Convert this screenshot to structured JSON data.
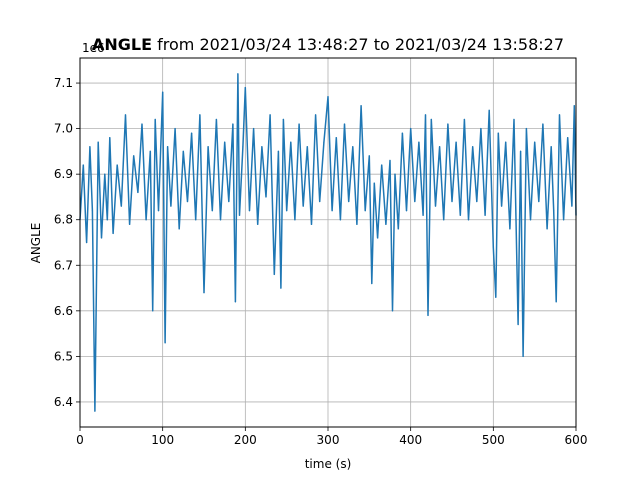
{
  "chart_data": {
    "type": "line",
    "title_bold": "ANGLE",
    "title_rest": " from 2021/03/24 13:48:27 to 2021/03/24 13:58:27",
    "offset_label": "1e6",
    "xlabel": "time (s)",
    "ylabel": "ANGLE",
    "xlim": [
      0,
      600
    ],
    "ylim": [
      6.345,
      7.155
    ],
    "x_ticks": [
      0,
      100,
      200,
      300,
      400,
      500,
      600
    ],
    "y_ticks": [
      6.4,
      6.5,
      6.6,
      6.7,
      6.8,
      6.9,
      7.0,
      7.1
    ],
    "y_tick_labels": [
      "6.4",
      "6.5",
      "6.6",
      "6.7",
      "6.8",
      "6.9",
      "7.0",
      "7.1"
    ],
    "grid": true,
    "line_color": "#1f77b4",
    "series": [
      {
        "x": [
          0,
          4,
          8,
          12,
          15,
          18,
          22,
          26,
          30,
          33,
          36,
          40,
          45,
          50,
          55,
          60,
          65,
          70,
          75,
          80,
          85,
          88,
          91,
          95,
          100,
          103,
          106,
          110,
          115,
          120,
          125,
          130,
          135,
          140,
          145,
          150,
          155,
          160,
          165,
          170,
          175,
          180,
          185,
          188,
          191,
          193,
          197,
          200,
          205,
          210,
          215,
          220,
          225,
          230,
          235,
          240,
          243,
          246,
          250,
          255,
          260,
          265,
          270,
          275,
          280,
          285,
          290,
          295,
          300,
          305,
          310,
          315,
          320,
          325,
          330,
          335,
          340,
          345,
          350,
          353,
          356,
          360,
          365,
          370,
          375,
          378,
          381,
          385,
          390,
          395,
          400,
          405,
          410,
          415,
          418,
          421,
          425,
          430,
          435,
          440,
          445,
          450,
          455,
          460,
          465,
          470,
          475,
          480,
          485,
          490,
          495,
          500,
          503,
          506,
          510,
          515,
          520,
          525,
          530,
          533,
          536,
          540,
          545,
          550,
          555,
          560,
          565,
          570,
          573,
          576,
          580,
          585,
          590,
          595,
          598,
          600
        ],
        "y": [
          6.8,
          6.92,
          6.75,
          6.96,
          6.82,
          6.38,
          6.97,
          6.76,
          6.9,
          6.8,
          6.98,
          6.77,
          6.92,
          6.83,
          7.03,
          6.79,
          6.94,
          6.86,
          7.01,
          6.8,
          6.95,
          6.6,
          7.02,
          6.82,
          7.08,
          6.53,
          6.96,
          6.83,
          7.0,
          6.78,
          6.95,
          6.84,
          6.99,
          6.8,
          7.03,
          6.64,
          6.96,
          6.82,
          7.02,
          6.8,
          6.97,
          6.84,
          7.01,
          6.62,
          7.12,
          6.81,
          6.96,
          7.09,
          6.82,
          7.0,
          6.79,
          6.96,
          6.85,
          7.03,
          6.68,
          6.95,
          6.65,
          7.02,
          6.82,
          6.97,
          6.8,
          7.01,
          6.83,
          6.96,
          6.79,
          7.03,
          6.84,
          6.97,
          7.07,
          6.82,
          6.98,
          6.8,
          7.01,
          6.84,
          6.96,
          6.79,
          7.05,
          6.82,
          6.94,
          6.66,
          6.88,
          6.76,
          6.92,
          6.79,
          6.93,
          6.6,
          6.9,
          6.78,
          6.99,
          6.82,
          7.0,
          6.84,
          6.97,
          6.81,
          7.03,
          6.59,
          7.02,
          6.83,
          6.96,
          6.8,
          7.01,
          6.84,
          6.97,
          6.81,
          7.02,
          6.8,
          6.96,
          6.84,
          7.0,
          6.81,
          7.04,
          6.74,
          6.63,
          6.99,
          6.83,
          6.97,
          6.78,
          7.02,
          6.57,
          6.95,
          6.5,
          7.0,
          6.8,
          6.97,
          6.84,
          7.01,
          6.78,
          6.96,
          6.82,
          6.62,
          7.03,
          6.8,
          6.98,
          6.83,
          7.05,
          6.81
        ]
      }
    ]
  }
}
